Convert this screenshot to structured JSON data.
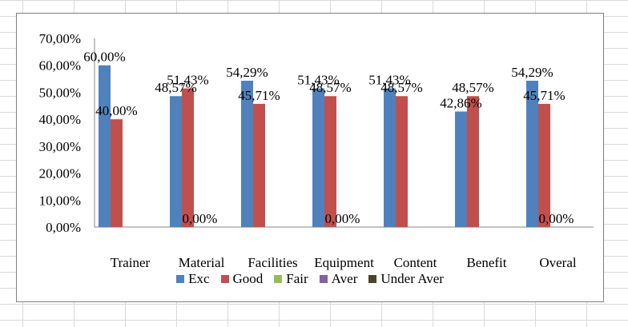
{
  "chart_data": {
    "type": "bar",
    "categories": [
      "Trainer",
      "Material",
      "Facilities",
      "Equipment",
      "Content",
      "Benefit",
      "Overal"
    ],
    "series": [
      {
        "name": "Exc",
        "color": "#4f81bd",
        "values": [
          60.0,
          48.57,
          54.29,
          51.43,
          51.43,
          42.86,
          54.29
        ]
      },
      {
        "name": "Good",
        "color": "#c0504d",
        "values": [
          40.0,
          51.43,
          45.71,
          48.57,
          48.57,
          48.57,
          45.71
        ]
      },
      {
        "name": "Fair",
        "color": "#9bbb59",
        "values": [
          0,
          0,
          0,
          0,
          0,
          0,
          0
        ]
      },
      {
        "name": "Aver",
        "color": "#8064a2",
        "values": [
          0,
          0,
          0,
          0,
          0,
          0,
          0
        ]
      },
      {
        "name": "Under Aver",
        "color": "#4a452a",
        "values": [
          0,
          0,
          0,
          0,
          0,
          0,
          0
        ]
      }
    ],
    "data_labels": [
      {
        "series": "Exc",
        "category": "Trainer",
        "text": "60,00%"
      },
      {
        "series": "Good",
        "category": "Trainer",
        "text": "40,00%"
      },
      {
        "series": "Exc",
        "category": "Material",
        "text": "48,57%"
      },
      {
        "series": "Good",
        "category": "Material",
        "text": "51,43%"
      },
      {
        "series": "Fair",
        "category": "Material",
        "text": "0,00%"
      },
      {
        "series": "Exc",
        "category": "Facilities",
        "text": "54,29%"
      },
      {
        "series": "Good",
        "category": "Facilities",
        "text": "45,71%"
      },
      {
        "series": "Exc",
        "category": "Equipment",
        "text": "51,43%"
      },
      {
        "series": "Good",
        "category": "Equipment",
        "text": "48,57%"
      },
      {
        "series": "Fair",
        "category": "Equipment",
        "text": "0,00%"
      },
      {
        "series": "Exc",
        "category": "Content",
        "text": "51,43%"
      },
      {
        "series": "Good",
        "category": "Content",
        "text": "48,57%"
      },
      {
        "series": "Exc",
        "category": "Benefit",
        "text": "42,86%"
      },
      {
        "series": "Good",
        "category": "Benefit",
        "text": "48,57%"
      },
      {
        "series": "Exc",
        "category": "Overal",
        "text": "54,29%"
      },
      {
        "series": "Good",
        "category": "Overal",
        "text": "45,71%"
      },
      {
        "series": "Fair",
        "category": "Overal",
        "text": "0,00%"
      }
    ],
    "y_ticks": [
      "0,00%",
      "10,00%",
      "20,00%",
      "30,00%",
      "40,00%",
      "50,00%",
      "60,00%",
      "70,00%"
    ],
    "ylim": [
      0,
      70
    ],
    "grid": false,
    "legend_position": "bottom",
    "title": "",
    "xlabel": "",
    "ylabel": ""
  }
}
